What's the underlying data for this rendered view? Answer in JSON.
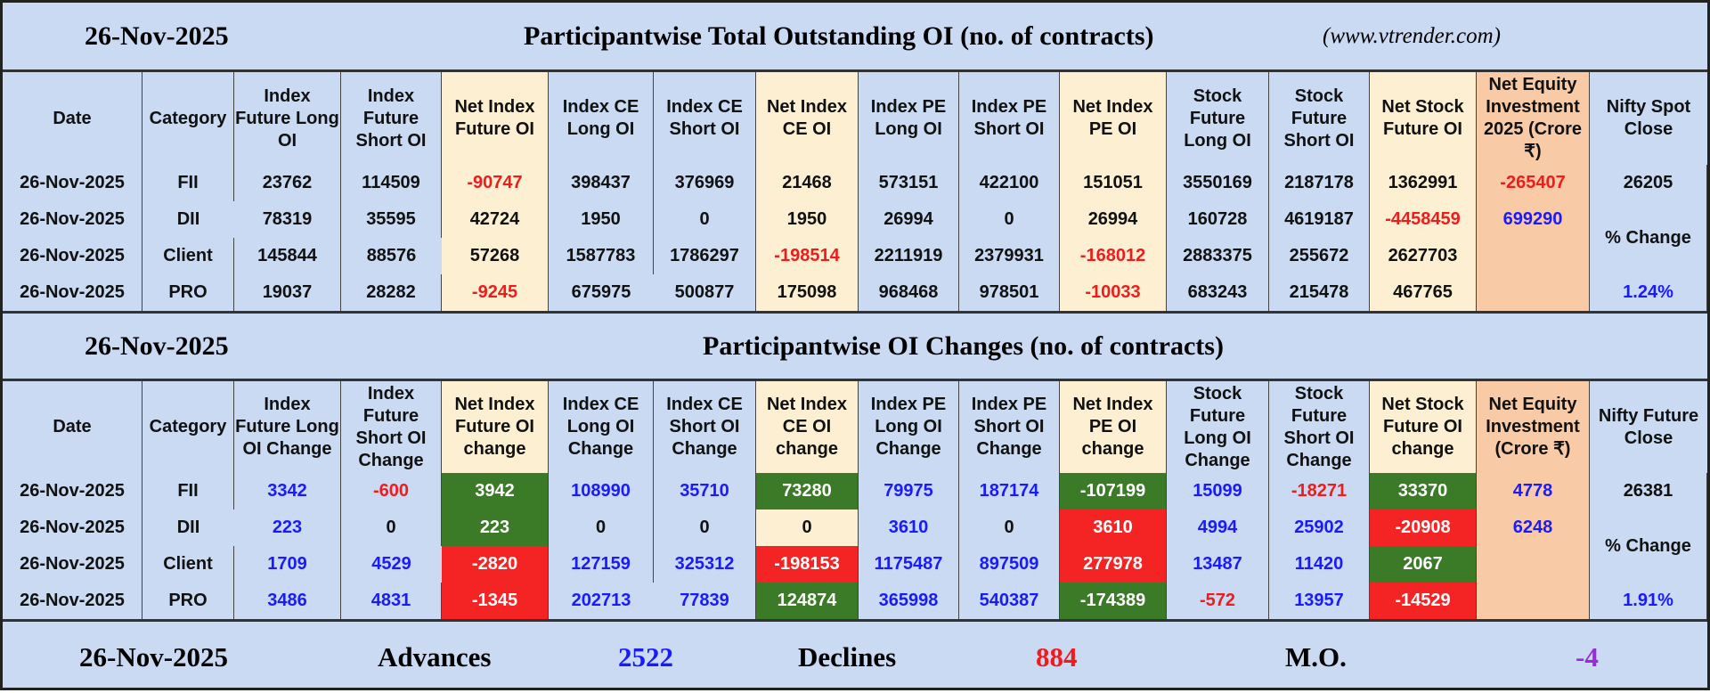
{
  "section1": {
    "date": "26-Nov-2025",
    "title": "Participantwise Total Outstanding OI (no. of contracts)",
    "source": "(www.vtrender.com)",
    "headers": [
      "Date",
      "Category",
      "Index Future Long OI",
      "Index Future Short OI",
      "Net Index Future OI",
      "Index CE Long OI",
      "Index CE Short OI",
      "Net Index CE OI",
      "Index PE Long OI",
      "Index PE Short OI",
      "Net Index PE OI",
      "Stock Future Long OI",
      "Stock Future Short OI",
      "Net Stock Future OI",
      "Net Equity Investment 2025 (Crore ₹)",
      "Nifty Spot Close"
    ],
    "rows": [
      [
        "26-Nov-2025",
        "FII",
        23762,
        114509,
        -90747,
        398437,
        376969,
        21468,
        573151,
        422100,
        151051,
        3550169,
        2187178,
        1362991
      ],
      [
        "26-Nov-2025",
        "DII",
        78319,
        35595,
        42724,
        1950,
        0,
        1950,
        26994,
        0,
        26994,
        160728,
        4619187,
        -4458459
      ],
      [
        "26-Nov-2025",
        "Client",
        145844,
        88576,
        57268,
        1587783,
        1786297,
        -198514,
        2211919,
        2379931,
        -168012,
        2883375,
        255672,
        2627703
      ],
      [
        "26-Nov-2025",
        "PRO",
        19037,
        28282,
        -9245,
        675975,
        500877,
        175098,
        968468,
        978501,
        -10033,
        683243,
        215478,
        467765
      ]
    ],
    "net_equity": [
      -265407,
      699290
    ],
    "nifty_close": 26205,
    "change_label": "% Change",
    "change": "1.24%"
  },
  "section2": {
    "date": "26-Nov-2025",
    "title": "Participantwise OI Changes (no. of contracts)",
    "headers": [
      "Date",
      "Category",
      "Index Future Long OI Change",
      "Index Future Short OI Change",
      "Net Index Future OI change",
      "Index CE Long OI Change",
      "Index CE Short OI Change",
      "Net Index CE OI change",
      "Index PE Long OI Change",
      "Index PE Short OI Change",
      "Net Index PE OI change",
      "Stock Future Long OI Change",
      "Stock Future Short OI Change",
      "Net Stock Future OI change",
      "Net Equity Investment (Crore ₹)",
      "Nifty Future Close"
    ],
    "rows": [
      [
        "26-Nov-2025",
        "FII",
        3342,
        -600,
        3942,
        108990,
        35710,
        73280,
        79975,
        187174,
        -107199,
        15099,
        -18271,
        33370
      ],
      [
        "26-Nov-2025",
        "DII",
        223,
        0,
        223,
        0,
        0,
        0,
        3610,
        0,
        3610,
        4994,
        25902,
        -20908
      ],
      [
        "26-Nov-2025",
        "Client",
        1709,
        4529,
        -2820,
        127159,
        325312,
        -198153,
        1175487,
        897509,
        277978,
        13487,
        11420,
        2067
      ],
      [
        "26-Nov-2025",
        "PRO",
        3486,
        4831,
        -1345,
        202713,
        77839,
        124874,
        365998,
        540387,
        -174389,
        -572,
        13957,
        -14529
      ]
    ],
    "net_fills": [
      [
        "#3b7a26",
        "#3b7a26",
        "#3b7a26",
        "#3b7a26"
      ],
      [
        "#3b7a26",
        "#fdf0d2",
        "#f52424",
        "#f52424"
      ],
      [
        "#f52424",
        "#f52424",
        "#f52424",
        "#3b7a26"
      ],
      [
        "#f52424",
        "#3b7a26",
        "#3b7a26",
        "#f52424"
      ]
    ],
    "net_equity": [
      4778,
      6248
    ],
    "nifty_close": 26381,
    "change_label": "% Change",
    "change": "1.91%"
  },
  "footer": {
    "date": "26-Nov-2025",
    "advances_label": "Advances",
    "advances": 2522,
    "declines_label": "Declines",
    "declines": 884,
    "mo_label": "M.O.",
    "mo": -4
  }
}
